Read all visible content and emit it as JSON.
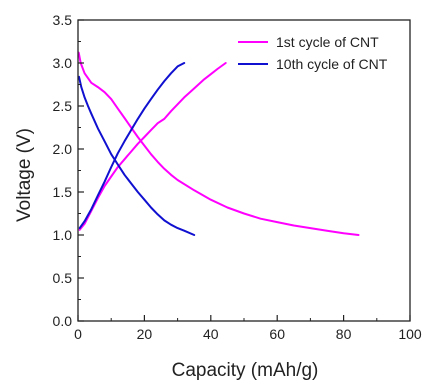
{
  "chart_data": {
    "type": "line",
    "title": "",
    "xlabel": "Capacity (mAh/g)",
    "ylabel": "Voltage (V)",
    "xlim": [
      0,
      100
    ],
    "ylim": [
      0,
      3.5
    ],
    "xticks": [
      "0",
      "20",
      "40",
      "60",
      "80",
      "100"
    ],
    "yticks": [
      "0.0",
      "0.5",
      "1.0",
      "1.5",
      "2.0",
      "2.5",
      "3.0",
      "3.5"
    ],
    "grid": false,
    "legend_position": "top-right",
    "series": [
      {
        "name": "1st cycle of CNT",
        "color": "#ff00ff",
        "segments": [
          {
            "kind": "discharge",
            "x": [
              0.2,
              0.8,
              2,
              4,
              6,
              8,
              10,
              12,
              14,
              16,
              18,
              20,
              22,
              24,
              26,
              28,
              30,
              35,
              40,
              45,
              50,
              55,
              60,
              65,
              70,
              75,
              80,
              84.5
            ],
            "y": [
              3.12,
              3.0,
              2.88,
              2.77,
              2.72,
              2.66,
              2.58,
              2.47,
              2.36,
              2.25,
              2.14,
              2.04,
              1.94,
              1.85,
              1.77,
              1.7,
              1.64,
              1.52,
              1.41,
              1.32,
              1.25,
              1.19,
              1.15,
              1.11,
              1.08,
              1.05,
              1.02,
              1.0
            ]
          },
          {
            "kind": "charge",
            "x": [
              0.5,
              2,
              4,
              6,
              8,
              10,
              12,
              14,
              16,
              18,
              20,
              22,
              24,
              26,
              28,
              30,
              32,
              34,
              36,
              38,
              40,
              42,
              44.5
            ],
            "y": [
              1.06,
              1.13,
              1.28,
              1.43,
              1.57,
              1.68,
              1.79,
              1.88,
              1.97,
              2.06,
              2.14,
              2.22,
              2.3,
              2.35,
              2.44,
              2.52,
              2.6,
              2.67,
              2.74,
              2.81,
              2.87,
              2.93,
              3.0
            ]
          }
        ]
      },
      {
        "name": "10th cycle of CNT",
        "color": "#1010d0",
        "segments": [
          {
            "kind": "discharge",
            "x": [
              0.3,
              1,
              2,
              3,
              4,
              6,
              8,
              10,
              12,
              14,
              16,
              18,
              20,
              22,
              24,
              26,
              28,
              30,
              32,
              35
            ],
            "y": [
              2.84,
              2.72,
              2.6,
              2.5,
              2.41,
              2.24,
              2.09,
              1.94,
              1.82,
              1.7,
              1.6,
              1.5,
              1.41,
              1.32,
              1.24,
              1.17,
              1.12,
              1.08,
              1.05,
              1.0
            ]
          },
          {
            "kind": "charge",
            "x": [
              0.5,
              2,
              4,
              6,
              8,
              10,
              12,
              14,
              16,
              18,
              20,
              22,
              24,
              26,
              28,
              30,
              32
            ],
            "y": [
              1.08,
              1.16,
              1.3,
              1.46,
              1.62,
              1.79,
              1.95,
              2.09,
              2.22,
              2.35,
              2.47,
              2.58,
              2.69,
              2.79,
              2.88,
              2.96,
              3.0
            ]
          }
        ]
      }
    ]
  }
}
